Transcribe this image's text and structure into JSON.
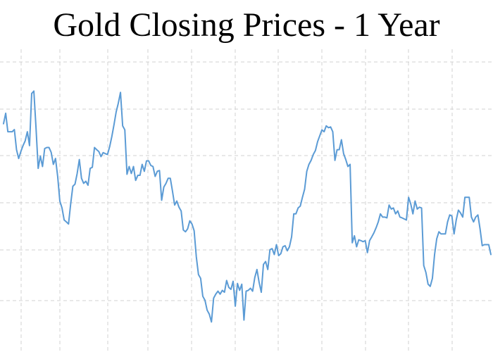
{
  "chart_data": {
    "type": "line",
    "title": "Gold Closing Prices - 1 Year",
    "xlabel": "",
    "ylabel": "",
    "grid": true,
    "legend": "none",
    "line_color": "#5b9bd5",
    "grid_color": "#d0d0d0",
    "ylim": [
      0,
      100
    ],
    "series": [
      {
        "values": [
          75.6,
          79.5,
          72.6,
          72.6,
          72.6,
          73.4,
          65.9,
          62.6,
          65.2,
          67.4,
          69.2,
          72.6,
          67.4,
          86.9,
          87.8,
          74.1,
          58.9,
          63.5,
          59.6,
          66.3,
          66.7,
          66.7,
          64.9,
          60.4,
          62.6,
          55.9,
          46.7,
          44.1,
          39.6,
          38.9,
          38.1,
          45.6,
          52.2,
          53.0,
          57.0,
          62.2,
          55.2,
          53.3,
          54.1,
          52.6,
          58.9,
          59.3,
          66.7,
          65.9,
          65.2,
          63.3,
          64.8,
          64.4,
          64.1,
          67.0,
          70.8,
          75.2,
          80.0,
          83.3,
          87.3,
          74.8,
          73.3,
          56.7,
          59.6,
          57.0,
          59.6,
          54.4,
          56.3,
          56.3,
          60.4,
          57.8,
          61.7,
          61.7,
          60.0,
          59.6,
          55.9,
          57.8,
          58.1,
          47.0,
          51.9,
          53.3,
          55.2,
          55.2,
          50.4,
          45.2,
          46.7,
          44.4,
          43.0,
          35.9,
          35.2,
          36.3,
          39.3,
          38.1,
          35.6,
          25.9,
          19.2,
          17.8,
          11.1,
          9.6,
          5.9,
          4.4,
          1.5,
          10.4,
          11.9,
          13.0,
          11.9,
          13.3,
          12.6,
          17.0,
          14.4,
          13.7,
          16.7,
          7.4,
          15.9,
          13.3,
          15.6,
          2.2,
          13.0,
          13.3,
          14.1,
          13.0,
          18.1,
          21.1,
          16.3,
          12.6,
          23.0,
          24.1,
          21.1,
          28.5,
          28.9,
          26.7,
          30.4,
          26.3,
          27.0,
          29.6,
          30.0,
          28.1,
          29.6,
          33.3,
          41.9,
          41.9,
          44.1,
          44.8,
          48.1,
          51.1,
          57.8,
          60.4,
          61.9,
          64.1,
          65.6,
          68.9,
          71.1,
          73.3,
          72.6,
          74.8,
          74.1,
          74.4,
          72.6,
          61.9,
          65.9,
          65.9,
          69.6,
          64.4,
          62.2,
          59.6,
          60.4,
          31.1,
          33.7,
          29.6,
          32.2,
          31.9,
          31.5,
          31.9,
          27.4,
          31.9,
          33.3,
          34.8,
          36.7,
          38.9,
          41.9,
          40.7,
          40.7,
          40.4,
          45.2,
          43.7,
          44.1,
          41.9,
          43.0,
          40.7,
          40.4,
          40.0,
          39.6,
          48.1,
          45.6,
          41.9,
          46.7,
          43.7,
          44.4,
          44.1,
          22.6,
          20.0,
          15.6,
          14.8,
          17.8,
          26.7,
          32.6,
          35.2,
          34.4,
          34.4,
          34.4,
          38.9,
          41.5,
          41.1,
          34.4,
          39.6,
          43.3,
          42.2,
          40.7,
          48.1,
          48.1,
          48.1,
          40.7,
          38.9,
          40.7,
          41.5,
          36.3,
          30.0,
          30.4,
          30.4,
          30.4,
          26.7
        ]
      }
    ]
  }
}
